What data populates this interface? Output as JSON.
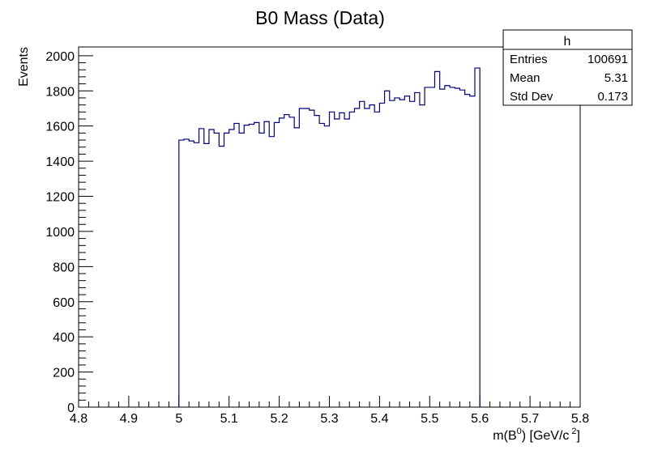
{
  "chart_data": {
    "type": "histogram",
    "title": "B0 Mass (Data)",
    "xlabel": {
      "pre": "m(B",
      "sup0": "0",
      "mid": ") [GeV/c",
      "sup2": "2",
      "post": "]"
    },
    "ylabel": "Events",
    "xlim": [
      4.8,
      5.8
    ],
    "ylim": [
      0,
      2050
    ],
    "x_ticks": [
      "4.8",
      "4.9",
      "5",
      "5.1",
      "5.2",
      "5.3",
      "5.4",
      "5.5",
      "5.6",
      "5.7",
      "5.8"
    ],
    "y_ticks": [
      "0",
      "200",
      "400",
      "600",
      "800",
      "1000",
      "1200",
      "1400",
      "1600",
      "1800",
      "2000"
    ],
    "bin_start": 5.0,
    "bin_width": 0.01,
    "values": [
      1520,
      1525,
      1515,
      1505,
      1585,
      1500,
      1580,
      1560,
      1485,
      1560,
      1580,
      1615,
      1560,
      1605,
      1610,
      1620,
      1560,
      1625,
      1540,
      1620,
      1645,
      1665,
      1650,
      1590,
      1700,
      1700,
      1690,
      1660,
      1615,
      1600,
      1680,
      1640,
      1675,
      1640,
      1680,
      1700,
      1740,
      1700,
      1720,
      1680,
      1730,
      1800,
      1745,
      1760,
      1750,
      1770,
      1740,
      1790,
      1720,
      1820,
      1820,
      1910,
      1810,
      1830,
      1820,
      1815,
      1805,
      1780,
      1770,
      1930
    ],
    "line_color": "#000080",
    "stats": {
      "title": "h",
      "rows": [
        {
          "label": "Entries",
          "value": "100691"
        },
        {
          "label": "Mean",
          "value": "5.31"
        },
        {
          "label": "Std Dev",
          "value": "0.173"
        }
      ]
    }
  }
}
